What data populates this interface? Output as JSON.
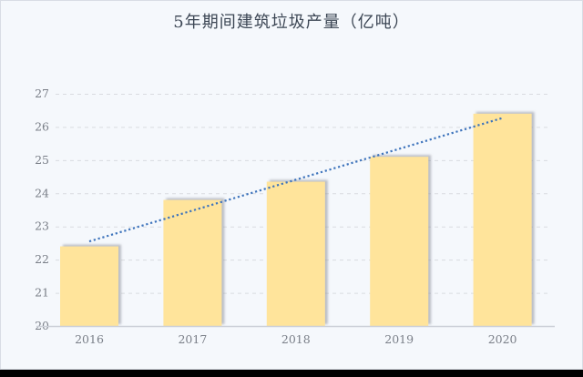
{
  "page": {
    "background_color": "#f5f8fc",
    "border_color": "#d9dde5",
    "bottom_bar_color": "#000000"
  },
  "chart_data": {
    "type": "bar",
    "title": "5年期间建筑垃圾产量（亿吨）",
    "categories": [
      "2016",
      "2017",
      "2018",
      "2019",
      "2020"
    ],
    "values": [
      22.4,
      23.8,
      24.35,
      25.1,
      26.4
    ],
    "xlabel": "",
    "ylabel": "",
    "ylim": [
      20,
      27
    ],
    "y_ticks": [
      20,
      21,
      22,
      23,
      24,
      25,
      26,
      27
    ],
    "grid": "dashed horizontal",
    "legend": "none",
    "trendline": {
      "fit": "linear",
      "style": "dotted",
      "color": "#3e74bc"
    },
    "colors": {
      "bar_fill": "#ffe49b",
      "bar_shadow": "#8a8f9a",
      "gridline": "#d9dbe0",
      "axis_line": "#ccd0d8",
      "tick_label": "#7a7f88",
      "title": "#3c4654"
    }
  }
}
